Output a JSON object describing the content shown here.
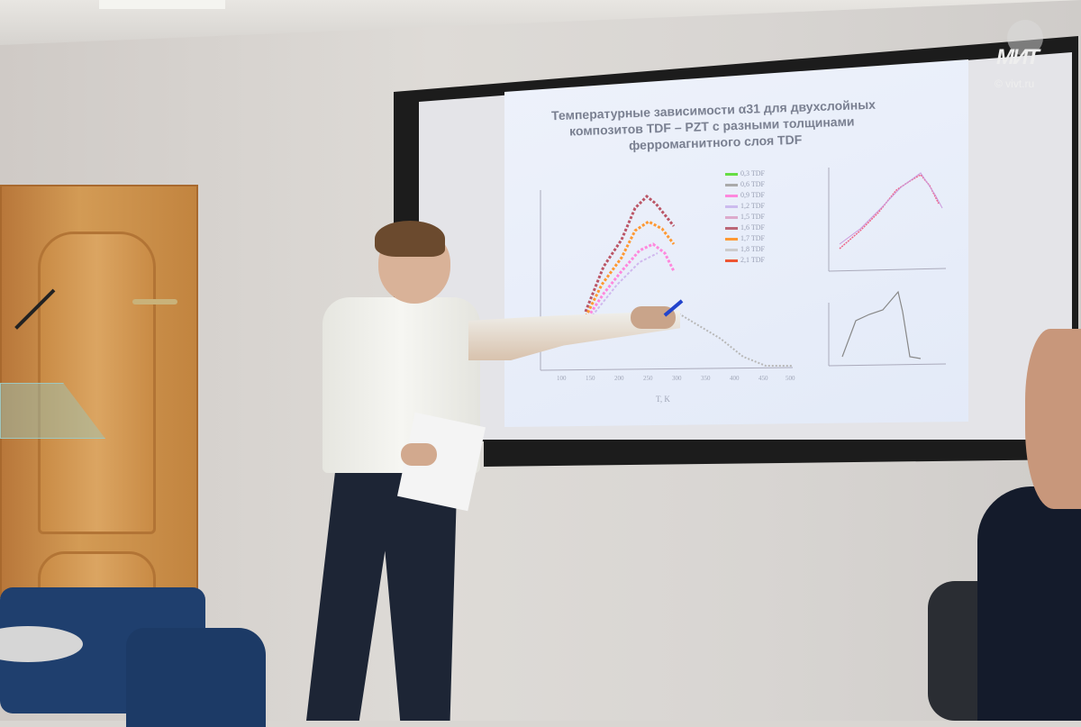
{
  "watermark": {
    "logo_text": "МИТ",
    "copyright": "© vivt.ru"
  },
  "slide": {
    "title_lines": [
      "Температурные зависимости α31 для двухслойных",
      "композитов TDF – PZT с разными толщинами",
      "ферромагнитного слоя TDF"
    ],
    "legend": [
      {
        "label": "0,3 TDF",
        "color": "#66dd44"
      },
      {
        "label": "0,6 TDF",
        "color": "#aaaaaa"
      },
      {
        "label": "0,9 TDF",
        "color": "#ff88dd"
      },
      {
        "label": "1,2 TDF",
        "color": "#ccbbee"
      },
      {
        "label": "1,5 TDF",
        "color": "#ddaacc"
      },
      {
        "label": "1,6 TDF",
        "color": "#bb6677"
      },
      {
        "label": "1,7 TDF",
        "color": "#ff9933"
      },
      {
        "label": "1,8 TDF",
        "color": "#cccccc"
      },
      {
        "label": "2,1 TDF",
        "color": "#ee5533"
      }
    ],
    "x_ticks": [
      "100",
      "150",
      "200",
      "250",
      "300",
      "350",
      "400",
      "450",
      "500"
    ],
    "x_label": "T, K"
  },
  "colors": {
    "shirt": "#f2f2ee",
    "pants": "#1d2535",
    "door": "#c98b45",
    "chairs": "#1f3f6e",
    "screen_frame": "#1c1c1c"
  }
}
